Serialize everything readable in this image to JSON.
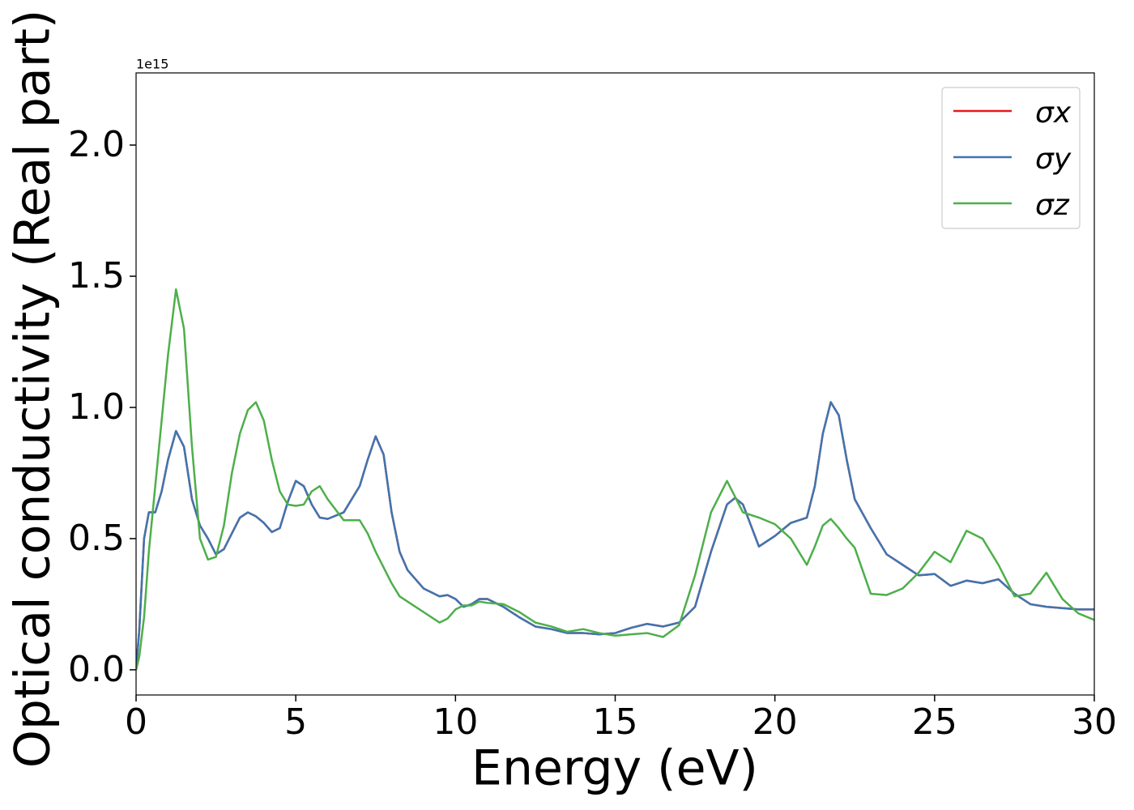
{
  "chart_data": {
    "type": "line",
    "y_label": "Optical conductivity (Real part)",
    "x_label": "Energy (eV)",
    "y_offset_label": "1e15",
    "x": [
      0,
      0.1,
      0.25,
      0.4,
      0.6,
      0.8,
      1.0,
      1.25,
      1.5,
      1.75,
      2.0,
      2.25,
      2.5,
      2.75,
      3.0,
      3.25,
      3.5,
      3.75,
      4.0,
      4.25,
      4.5,
      4.75,
      5.0,
      5.25,
      5.5,
      5.75,
      6.0,
      6.5,
      7.0,
      7.25,
      7.5,
      7.75,
      8.0,
      8.25,
      8.5,
      9.0,
      9.5,
      9.75,
      10.0,
      10.25,
      10.5,
      10.75,
      11.0,
      11.5,
      12,
      12.5,
      13,
      13.5,
      14,
      14.5,
      15,
      15.5,
      16,
      16.5,
      17,
      17.5,
      18,
      18.5,
      18.75,
      19,
      19.5,
      20,
      20.5,
      21,
      21.25,
      21.5,
      21.75,
      22,
      22.25,
      22.5,
      23,
      23.5,
      24,
      24.5,
      25,
      25.5,
      26,
      26.5,
      27,
      27.5,
      28,
      28.5,
      29,
      29.5,
      30
    ],
    "series": [
      {
        "name": "σx",
        "color": "#e41a1c",
        "values": [
          0,
          0.15,
          0.5,
          0.6,
          0.6,
          0.68,
          0.8,
          0.91,
          0.85,
          0.65,
          0.55,
          0.5,
          0.44,
          0.46,
          0.52,
          0.58,
          0.6,
          0.585,
          0.56,
          0.525,
          0.54,
          0.64,
          0.72,
          0.7,
          0.63,
          0.58,
          0.575,
          0.6,
          0.7,
          0.8,
          0.89,
          0.82,
          0.6,
          0.45,
          0.38,
          0.31,
          0.28,
          0.285,
          0.27,
          0.24,
          0.25,
          0.27,
          0.27,
          0.24,
          0.2,
          0.165,
          0.155,
          0.14,
          0.14,
          0.135,
          0.14,
          0.16,
          0.175,
          0.165,
          0.18,
          0.24,
          0.45,
          0.63,
          0.655,
          0.63,
          0.47,
          0.51,
          0.56,
          0.58,
          0.7,
          0.9,
          1.02,
          0.97,
          0.8,
          0.65,
          0.54,
          0.44,
          0.4,
          0.36,
          0.365,
          0.32,
          0.34,
          0.33,
          0.345,
          0.29,
          0.25,
          0.24,
          0.235,
          0.23,
          0.23
        ]
      },
      {
        "name": "σy",
        "color": "#3f75b0",
        "values": [
          0,
          0.15,
          0.5,
          0.6,
          0.6,
          0.68,
          0.8,
          0.91,
          0.85,
          0.65,
          0.55,
          0.5,
          0.44,
          0.46,
          0.52,
          0.58,
          0.6,
          0.585,
          0.56,
          0.525,
          0.54,
          0.64,
          0.72,
          0.7,
          0.63,
          0.58,
          0.575,
          0.6,
          0.7,
          0.8,
          0.89,
          0.82,
          0.6,
          0.45,
          0.38,
          0.31,
          0.28,
          0.285,
          0.27,
          0.24,
          0.25,
          0.27,
          0.27,
          0.24,
          0.2,
          0.165,
          0.155,
          0.14,
          0.14,
          0.135,
          0.14,
          0.16,
          0.175,
          0.165,
          0.18,
          0.24,
          0.45,
          0.63,
          0.655,
          0.63,
          0.47,
          0.51,
          0.56,
          0.58,
          0.7,
          0.9,
          1.02,
          0.97,
          0.8,
          0.65,
          0.54,
          0.44,
          0.4,
          0.36,
          0.365,
          0.32,
          0.34,
          0.33,
          0.345,
          0.29,
          0.25,
          0.24,
          0.235,
          0.23,
          0.23
        ]
      },
      {
        "name": "σz",
        "color": "#4daf4a",
        "values": [
          0,
          0.05,
          0.2,
          0.45,
          0.7,
          0.95,
          1.2,
          1.45,
          1.3,
          0.85,
          0.5,
          0.42,
          0.43,
          0.55,
          0.75,
          0.9,
          0.99,
          1.02,
          0.95,
          0.8,
          0.68,
          0.63,
          0.625,
          0.63,
          0.68,
          0.7,
          0.65,
          0.57,
          0.57,
          0.52,
          0.45,
          0.39,
          0.33,
          0.28,
          0.26,
          0.22,
          0.18,
          0.195,
          0.23,
          0.245,
          0.245,
          0.26,
          0.255,
          0.25,
          0.22,
          0.18,
          0.165,
          0.145,
          0.155,
          0.14,
          0.13,
          0.135,
          0.14,
          0.125,
          0.17,
          0.36,
          0.6,
          0.72,
          0.66,
          0.6,
          0.58,
          0.555,
          0.5,
          0.4,
          0.47,
          0.55,
          0.575,
          0.54,
          0.5,
          0.465,
          0.29,
          0.285,
          0.31,
          0.37,
          0.45,
          0.41,
          0.53,
          0.5,
          0.4,
          0.28,
          0.29,
          0.37,
          0.27,
          0.215,
          0.19
        ]
      }
    ],
    "xlim": [
      0,
      30
    ],
    "xticks": [
      0,
      5,
      10,
      15,
      20,
      25,
      30
    ],
    "ylim": [
      -0.096,
      2.275
    ],
    "yticks": [
      {
        "value": 0,
        "label": "0.0"
      },
      0.5,
      {
        "value": 1,
        "label": "1.0"
      },
      1.5,
      {
        "value": 2,
        "label": "2.0"
      }
    ],
    "legend": "upper right",
    "grid": false
  }
}
